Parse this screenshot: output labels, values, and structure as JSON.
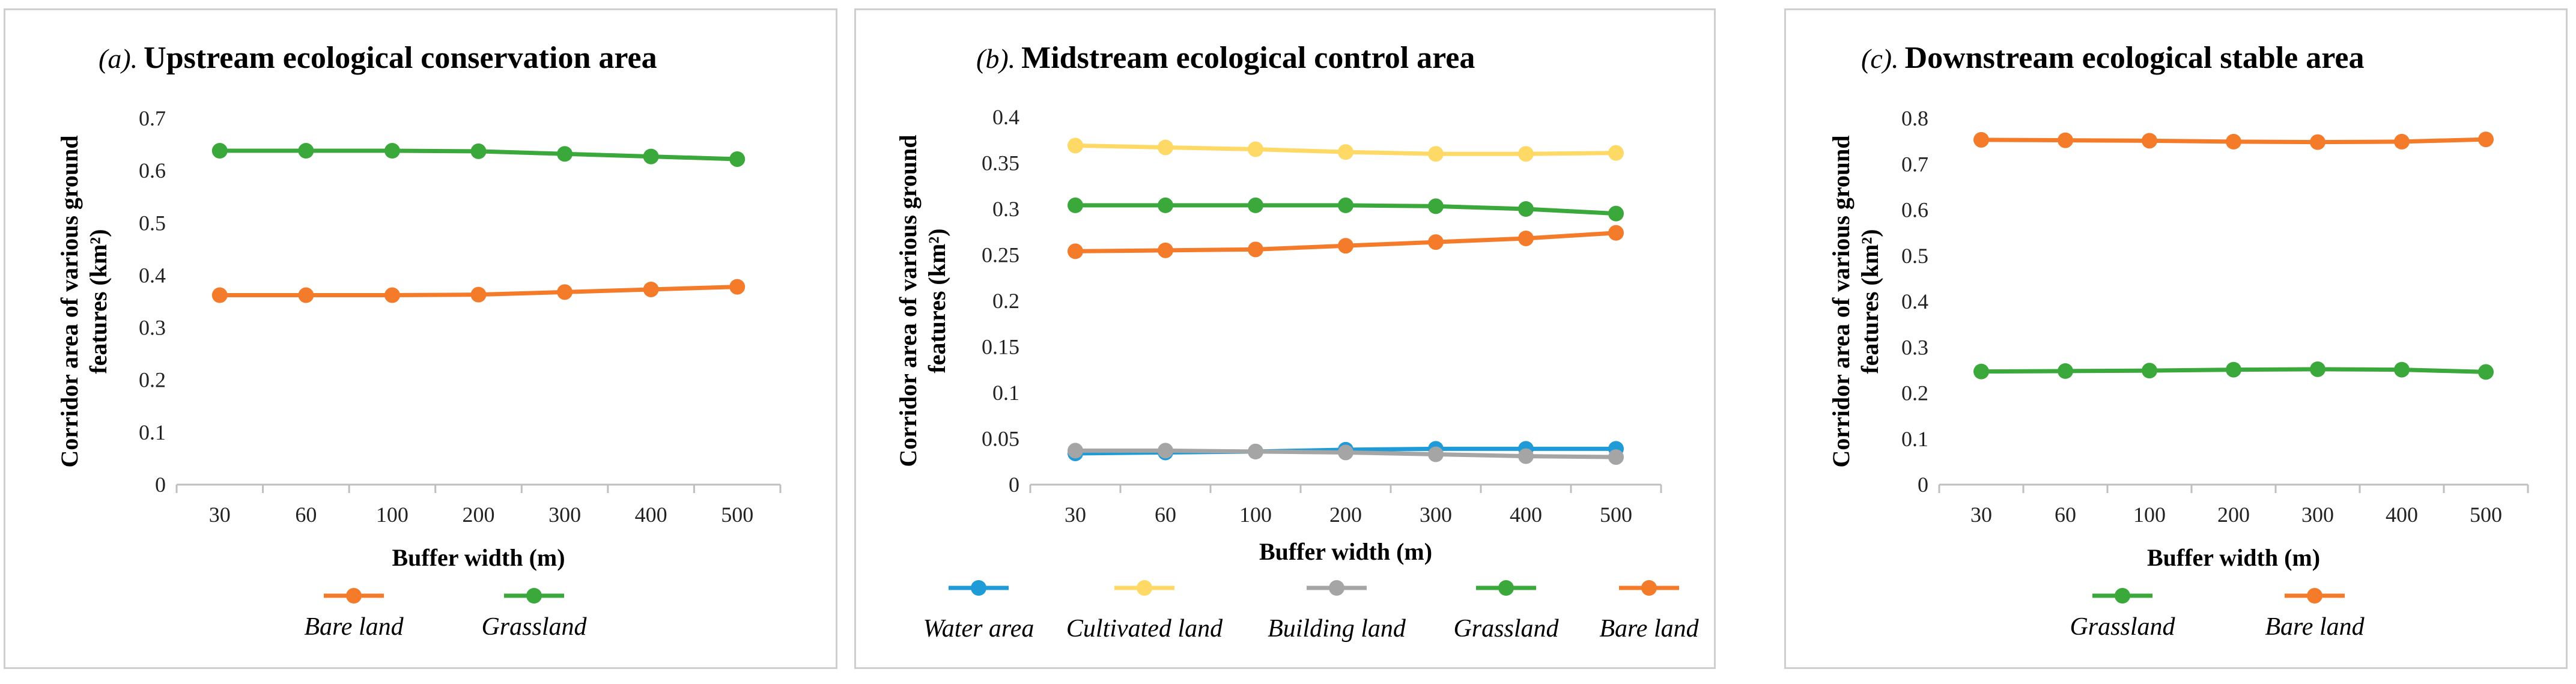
{
  "chart_data": [
    {
      "type": "line",
      "title_prefix": "(a).",
      "title": "Upstream ecological conservation area",
      "xlabel": "Buffer width (m)",
      "ylabel_lines": [
        "Corridor area of various ground",
        "features (km²)"
      ],
      "categories": [
        "30",
        "60",
        "100",
        "200",
        "300",
        "400",
        "500"
      ],
      "ylim": [
        0,
        0.7
      ],
      "yticks": [
        "0",
        "0.1",
        "0.2",
        "0.3",
        "0.4",
        "0.5",
        "0.6",
        "0.7"
      ],
      "series": [
        {
          "name": "Bare land",
          "color": "#f47b2a",
          "values": [
            0.362,
            0.362,
            0.362,
            0.363,
            0.368,
            0.373,
            0.378
          ]
        },
        {
          "name": "Grassland",
          "color": "#3aa83a",
          "values": [
            0.638,
            0.638,
            0.638,
            0.637,
            0.632,
            0.627,
            0.622
          ]
        }
      ]
    },
    {
      "type": "line",
      "title_prefix": "(b).",
      "title": "Midstream ecological control area",
      "xlabel": "Buffer width (m)",
      "ylabel_lines": [
        "Corridor area of various ground",
        "features (km²)"
      ],
      "categories": [
        "30",
        "60",
        "100",
        "200",
        "300",
        "400",
        "500"
      ],
      "ylim": [
        0,
        0.4
      ],
      "yticks": [
        "0",
        "0.05",
        "0.1",
        "0.15",
        "0.2",
        "0.25",
        "0.3",
        "0.35",
        "0.4"
      ],
      "series": [
        {
          "name": "Water area",
          "color": "#1f9bd7",
          "values": [
            0.034,
            0.035,
            0.036,
            0.038,
            0.039,
            0.039,
            0.039
          ]
        },
        {
          "name": "Cultivated land",
          "color": "#ffd966",
          "values": [
            0.369,
            0.367,
            0.365,
            0.362,
            0.36,
            0.36,
            0.361
          ]
        },
        {
          "name": "Building land",
          "color": "#a5a5a5",
          "values": [
            0.037,
            0.037,
            0.036,
            0.035,
            0.033,
            0.031,
            0.03
          ]
        },
        {
          "name": "Grassland",
          "color": "#3aa83a",
          "values": [
            0.304,
            0.304,
            0.304,
            0.304,
            0.303,
            0.3,
            0.295
          ]
        },
        {
          "name": "Bare land",
          "color": "#f47b2a",
          "values": [
            0.254,
            0.255,
            0.256,
            0.26,
            0.264,
            0.268,
            0.274
          ]
        }
      ]
    },
    {
      "type": "line",
      "title_prefix": "(c).",
      "title": "Downstream ecological stable area",
      "xlabel": "Buffer width (m)",
      "ylabel_lines": [
        "Corridor area of various ground",
        "features (km²)"
      ],
      "categories": [
        "30",
        "60",
        "100",
        "200",
        "300",
        "400",
        "500"
      ],
      "ylim": [
        0,
        0.8
      ],
      "yticks": [
        "0",
        "0.1",
        "0.2",
        "0.3",
        "0.4",
        "0.5",
        "0.6",
        "0.7",
        "0.8"
      ],
      "series": [
        {
          "name": "Grassland",
          "color": "#3aa83a",
          "values": [
            0.247,
            0.248,
            0.249,
            0.251,
            0.252,
            0.251,
            0.246
          ]
        },
        {
          "name": "Bare land",
          "color": "#f47b2a",
          "values": [
            0.753,
            0.752,
            0.751,
            0.749,
            0.748,
            0.749,
            0.754
          ]
        }
      ]
    }
  ]
}
